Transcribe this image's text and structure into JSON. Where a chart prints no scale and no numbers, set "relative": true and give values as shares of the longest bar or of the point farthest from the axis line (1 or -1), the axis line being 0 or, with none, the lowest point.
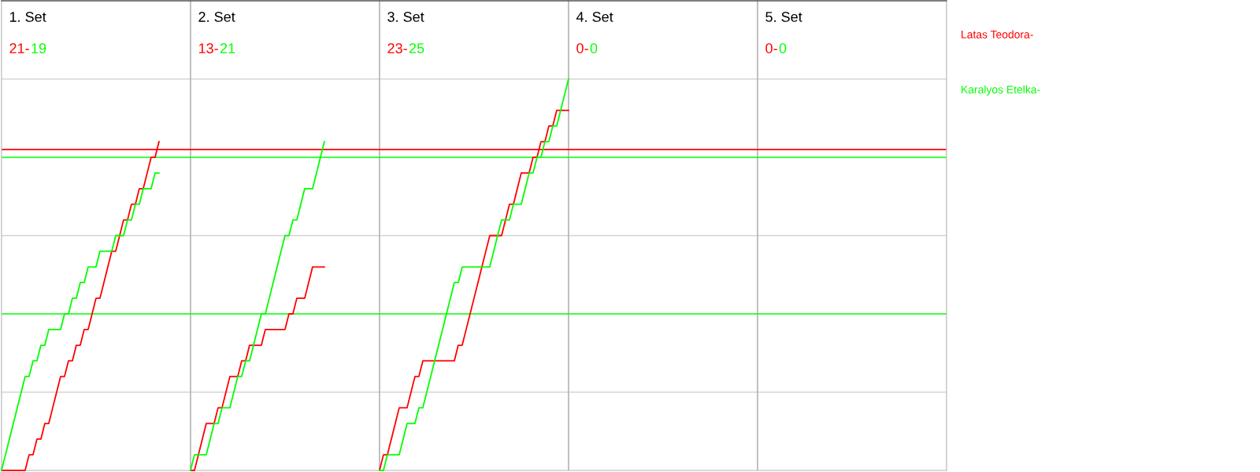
{
  "chart_data": {
    "type": "line",
    "relative": true,
    "legend": "right",
    "line_style": "solid",
    "annotations": [
      "1. Set",
      "21-",
      "19",
      "2. Set",
      "13-",
      "21",
      "3. Set",
      "23-",
      "25",
      "4. Set",
      "0-",
      "0",
      "5. Set",
      "0-",
      "0"
    ],
    "categories": [
      null,
      null,
      null,
      null,
      null,
      null,
      null,
      null,
      null,
      null,
      null,
      null,
      null,
      null,
      null,
      null,
      null,
      null,
      null,
      null,
      null,
      null,
      null,
      null,
      null,
      null,
      null,
      null,
      null,
      null,
      null,
      null,
      null,
      null,
      null,
      null,
      null,
      null,
      null,
      null,
      null,
      null,
      null,
      null,
      null,
      null,
      null,
      null,
      null,
      null,
      null,
      null,
      null,
      null,
      null,
      null,
      null,
      null,
      null,
      null,
      null,
      null,
      null,
      null,
      null,
      null,
      null,
      null,
      null,
      null,
      null,
      null,
      null,
      null,
      null,
      null,
      null,
      null,
      null,
      null,
      null,
      null,
      null,
      null,
      null,
      null,
      null,
      null,
      null,
      null,
      null,
      null,
      null,
      null,
      null,
      null,
      null,
      null,
      null,
      null,
      null,
      null,
      null,
      null,
      null,
      null,
      null,
      null,
      null,
      null,
      null,
      null,
      null,
      null,
      null,
      null,
      null,
      null,
      null,
      null,
      null,
      null,
      null,
      null,
      null,
      null,
      null,
      null,
      null,
      null,
      null,
      null,
      null,
      null,
      null,
      null,
      null,
      null,
      null,
      null,
      null,
      null,
      null,
      null,
      null,
      null,
      null,
      null,
      null,
      null,
      null,
      null,
      null,
      null,
      null,
      null,
      null,
      null,
      null,
      null,
      null,
      null,
      null,
      null,
      null,
      null,
      null,
      null,
      null,
      null,
      null,
      null,
      null,
      null,
      null,
      null,
      null,
      null,
      null,
      null,
      null,
      null,
      null,
      null,
      null,
      null,
      null,
      null,
      null,
      null,
      null,
      null,
      null,
      null,
      null,
      null,
      null,
      null,
      null,
      null,
      null,
      null,
      null,
      null,
      null,
      null,
      null,
      null,
      null,
      null,
      null,
      null,
      null,
      null,
      null,
      null,
      null,
      null,
      null,
      null,
      null,
      null,
      null,
      null,
      null,
      null,
      null,
      null,
      null,
      null,
      null,
      null,
      null,
      null,
      null,
      null,
      null,
      null,
      null,
      null,
      null
    ],
    "ref_lines": [
      {
        "axis": "y",
        "value": 0.2,
        "color": "#d3d3d3"
      },
      {
        "axis": "y",
        "value": 0.6,
        "color": "#d3d3d3"
      },
      {
        "axis": "y",
        "value": 1,
        "color": "#d3d3d3"
      },
      {
        "axis": "y",
        "value": 0.82,
        "color": "#ff0000"
      },
      {
        "axis": "y",
        "value": 0.8,
        "color": "#00ff00"
      },
      {
        "axis": "y",
        "value": 0.4,
        "color": "#00ff00"
      }
    ],
    "series": [
      {
        "name": "Latas Teodora-",
        "color": "#ff0000",
        "values": [
          0,
          0,
          0,
          0,
          0,
          0,
          0,
          0.04,
          0.04,
          0.08,
          0.08,
          0.12,
          0.12,
          0.16,
          0.2,
          0.24,
          0.24,
          0.28,
          0.28,
          0.32,
          0.32,
          0.36,
          0.36,
          0.4,
          0.44,
          0.44,
          0.48,
          0.52,
          0.56,
          0.56,
          0.6,
          0.64,
          0.64,
          0.68,
          0.68,
          0.72,
          0.72,
          0.76,
          0.8,
          0.8,
          0.84,
          null,
          null,
          null,
          null,
          null,
          null,
          null,
          null,
          null,
          null,
          null,
          null,
          null,
          null,
          null,
          null,
          null,
          null,
          null,
          null,
          null,
          null,
          null,
          null,
          null,
          null,
          null,
          null,
          null,
          null,
          null,
          null,
          null,
          null,
          null,
          null,
          null,
          null,
          null,
          null,
          null,
          null,
          null,
          null,
          null,
          null,
          null,
          null,
          null,
          null,
          null,
          null,
          null,
          null,
          null,
          null,
          null,
          null,
          null,
          null,
          null,
          null,
          null,
          null,
          null,
          null,
          null,
          null,
          null,
          null,
          null,
          null,
          null,
          null,
          null,
          null,
          null,
          null,
          null,
          null,
          null,
          null,
          null,
          null,
          null,
          null,
          null,
          null,
          null,
          null,
          null,
          null,
          null,
          null,
          null,
          null,
          null,
          null,
          null,
          null,
          null,
          null,
          null,
          null,
          null,
          null,
          null,
          null,
          null,
          null,
          null,
          null,
          null,
          null,
          null,
          null,
          null,
          null,
          null,
          null,
          null,
          null,
          null,
          null,
          null,
          null,
          null,
          null,
          null,
          null,
          null,
          null,
          null,
          null,
          null,
          null,
          null,
          null,
          null,
          null,
          null,
          null,
          null,
          null,
          null,
          null,
          null,
          null,
          null,
          null,
          null,
          null,
          null,
          null,
          null,
          null,
          null,
          null,
          null,
          null,
          null,
          null,
          null,
          null,
          null,
          null,
          null,
          null,
          null,
          null,
          null,
          null,
          null,
          null,
          null,
          null,
          null,
          null,
          null,
          null,
          null,
          null,
          null,
          null,
          null,
          null,
          null,
          null,
          null,
          null,
          null,
          null,
          null,
          null,
          null,
          null,
          null,
          null,
          null,
          null
        ]
      },
      {
        "name": "Karalyos Etelka-",
        "color": "#00ff00",
        "values": [
          0,
          0.04,
          0.08,
          0.12,
          0.16,
          0.2,
          0.24,
          0.24,
          0.28,
          0.28,
          0.32,
          0.32,
          0.36,
          0.36,
          0.36,
          0.36,
          0.4,
          0.4,
          0.44,
          0.44,
          0.48,
          0.48,
          0.52,
          0.52,
          0.52,
          0.56,
          0.56,
          0.56,
          0.56,
          0.6,
          0.6,
          0.6,
          0.64,
          0.64,
          0.68,
          0.68,
          0.72,
          0.72,
          0.72,
          0.76,
          0.76,
          null,
          null,
          null,
          null,
          null,
          null,
          null,
          null,
          null,
          null,
          null,
          null,
          null,
          null,
          null,
          null,
          null,
          null,
          null,
          null,
          null,
          null,
          null,
          null,
          null,
          null,
          null,
          null,
          null,
          null,
          null,
          null,
          null,
          null,
          null,
          null,
          null,
          null,
          null,
          null,
          null,
          null,
          null,
          null,
          null,
          null,
          null,
          null,
          null,
          null,
          null,
          null,
          null,
          null,
          null,
          null,
          null,
          null,
          null,
          null,
          null,
          null,
          null,
          null,
          null,
          null,
          null,
          null,
          null,
          null,
          null,
          null,
          null,
          null,
          null,
          null,
          null,
          null,
          null,
          null,
          null,
          null,
          null,
          null,
          null,
          null,
          null,
          null,
          null,
          null,
          null,
          null,
          null,
          null,
          null,
          null,
          null,
          null,
          null,
          null,
          null,
          null,
          null,
          null,
          null,
          null,
          null,
          null,
          null,
          null,
          null,
          null,
          null,
          null,
          null,
          null,
          null,
          null,
          null,
          null,
          null,
          null,
          null,
          null,
          null,
          null,
          null,
          null,
          null,
          null,
          null,
          null,
          null,
          null,
          null,
          null,
          null,
          null,
          null,
          null,
          null,
          null,
          null,
          null,
          null,
          null,
          null,
          null,
          null,
          null,
          null,
          null,
          null,
          null,
          null,
          null,
          null,
          null,
          null,
          null,
          null,
          null,
          null,
          null,
          null,
          null,
          null,
          null,
          null,
          null,
          null,
          null,
          null,
          null,
          null,
          null,
          null,
          null,
          null,
          null,
          null,
          null,
          null,
          null,
          null,
          null,
          null,
          null,
          null,
          null,
          null,
          null,
          null,
          null,
          null,
          null,
          null,
          null,
          null,
          null
        ]
      },
      {
        "color": "#ff0000",
        "values": [
          null,
          null,
          null,
          null,
          null,
          null,
          null,
          null,
          null,
          null,
          null,
          null,
          null,
          null,
          null,
          null,
          null,
          null,
          null,
          null,
          null,
          null,
          null,
          null,
          null,
          null,
          null,
          null,
          null,
          null,
          null,
          null,
          null,
          null,
          null,
          null,
          null,
          null,
          null,
          null,
          null,
          null,
          null,
          null,
          null,
          null,
          null,
          null,
          0,
          0,
          0.04,
          0.08,
          0.12,
          0.12,
          0.12,
          0.16,
          0.16,
          0.2,
          0.24,
          0.24,
          0.24,
          0.28,
          0.28,
          0.32,
          0.32,
          0.32,
          0.32,
          0.36,
          0.36,
          0.36,
          0.36,
          0.36,
          0.36,
          0.4,
          0.4,
          0.44,
          0.44,
          0.44,
          0.48,
          0.52,
          0.52,
          0.52,
          0.52,
          null,
          null,
          null,
          null,
          null,
          null,
          null,
          null,
          null,
          null,
          null,
          null,
          null,
          null,
          null,
          null,
          null,
          null,
          null,
          null,
          null,
          null,
          null,
          null,
          null,
          null,
          null,
          null,
          null,
          null,
          null,
          null,
          null,
          null,
          null,
          null,
          null,
          null,
          null,
          null,
          null,
          null,
          null,
          null,
          null,
          null,
          null,
          null,
          null,
          null,
          null,
          null,
          null,
          null,
          null,
          null,
          null,
          null,
          null,
          null,
          null,
          null,
          null,
          null,
          null,
          null,
          null,
          null,
          null,
          null,
          null,
          null,
          null,
          null,
          null,
          null,
          null,
          null,
          null,
          null,
          null,
          null,
          null,
          null,
          null,
          null,
          null,
          null,
          null,
          null,
          null,
          null,
          null,
          null,
          null,
          null,
          null,
          null,
          null,
          null,
          null,
          null,
          null,
          null,
          null,
          null,
          null,
          null,
          null,
          null,
          null,
          null,
          null,
          null,
          null,
          null,
          null,
          null,
          null,
          null,
          null,
          null,
          null,
          null,
          null,
          null,
          null,
          null,
          null,
          null,
          null,
          null,
          null,
          null,
          null,
          null,
          null,
          null,
          null,
          null,
          null,
          null,
          null,
          null,
          null,
          null,
          null,
          null,
          null,
          null,
          null,
          null,
          null,
          null,
          null,
          null,
          null,
          null
        ]
      },
      {
        "color": "#00ff00",
        "values": [
          null,
          null,
          null,
          null,
          null,
          null,
          null,
          null,
          null,
          null,
          null,
          null,
          null,
          null,
          null,
          null,
          null,
          null,
          null,
          null,
          null,
          null,
          null,
          null,
          null,
          null,
          null,
          null,
          null,
          null,
          null,
          null,
          null,
          null,
          null,
          null,
          null,
          null,
          null,
          null,
          null,
          null,
          null,
          null,
          null,
          null,
          null,
          null,
          0,
          0.04,
          0.04,
          0.04,
          0.04,
          0.08,
          0.12,
          0.12,
          0.16,
          0.16,
          0.16,
          0.2,
          0.24,
          0.24,
          0.28,
          0.28,
          0.32,
          0.36,
          0.4,
          0.4,
          0.44,
          0.48,
          0.52,
          0.56,
          0.6,
          0.6,
          0.64,
          0.64,
          0.68,
          0.72,
          0.72,
          0.72,
          0.76,
          0.8,
          0.84,
          null,
          null,
          null,
          null,
          null,
          null,
          null,
          null,
          null,
          null,
          null,
          null,
          null,
          null,
          null,
          null,
          null,
          null,
          null,
          null,
          null,
          null,
          null,
          null,
          null,
          null,
          null,
          null,
          null,
          null,
          null,
          null,
          null,
          null,
          null,
          null,
          null,
          null,
          null,
          null,
          null,
          null,
          null,
          null,
          null,
          null,
          null,
          null,
          null,
          null,
          null,
          null,
          null,
          null,
          null,
          null,
          null,
          null,
          null,
          null,
          null,
          null,
          null,
          null,
          null,
          null,
          null,
          null,
          null,
          null,
          null,
          null,
          null,
          null,
          null,
          null,
          null,
          null,
          null,
          null,
          null,
          null,
          null,
          null,
          null,
          null,
          null,
          null,
          null,
          null,
          null,
          null,
          null,
          null,
          null,
          null,
          null,
          null,
          null,
          null,
          null,
          null,
          null,
          null,
          null,
          null,
          null,
          null,
          null,
          null,
          null,
          null,
          null,
          null,
          null,
          null,
          null,
          null,
          null,
          null,
          null,
          null,
          null,
          null,
          null,
          null,
          null,
          null,
          null,
          null,
          null,
          null,
          null,
          null,
          null,
          null,
          null,
          null,
          null,
          null,
          null,
          null,
          null,
          null,
          null,
          null,
          null,
          null,
          null,
          null,
          null,
          null,
          null,
          null,
          null,
          null,
          null,
          null
        ]
      },
      {
        "color": "#ff0000",
        "values": [
          null,
          null,
          null,
          null,
          null,
          null,
          null,
          null,
          null,
          null,
          null,
          null,
          null,
          null,
          null,
          null,
          null,
          null,
          null,
          null,
          null,
          null,
          null,
          null,
          null,
          null,
          null,
          null,
          null,
          null,
          null,
          null,
          null,
          null,
          null,
          null,
          null,
          null,
          null,
          null,
          null,
          null,
          null,
          null,
          null,
          null,
          null,
          null,
          null,
          null,
          null,
          null,
          null,
          null,
          null,
          null,
          null,
          null,
          null,
          null,
          null,
          null,
          null,
          null,
          null,
          null,
          null,
          null,
          null,
          null,
          null,
          null,
          null,
          null,
          null,
          null,
          null,
          null,
          null,
          null,
          null,
          null,
          null,
          null,
          null,
          null,
          null,
          null,
          null,
          null,
          null,
          null,
          null,
          null,
          null,
          null,
          0,
          0.04,
          0.04,
          0.08,
          0.12,
          0.16,
          0.16,
          0.16,
          0.2,
          0.24,
          0.24,
          0.28,
          0.28,
          0.28,
          0.28,
          0.28,
          0.28,
          0.28,
          0.28,
          0.28,
          0.32,
          0.32,
          0.36,
          0.4,
          0.44,
          0.48,
          0.52,
          0.56,
          0.6,
          0.6,
          0.6,
          0.6,
          0.64,
          0.68,
          0.68,
          0.72,
          0.76,
          0.76,
          0.76,
          0.8,
          0.8,
          0.84,
          0.84,
          0.88,
          0.88,
          0.92,
          0.92,
          0.92,
          0.92,
          null,
          null,
          null,
          null,
          null,
          null,
          null,
          null,
          null,
          null,
          null,
          null,
          null,
          null,
          null,
          null,
          null,
          null,
          null,
          null,
          null,
          null,
          null,
          null,
          null,
          null,
          null,
          null,
          null,
          null,
          null,
          null,
          null,
          null,
          null,
          null,
          null,
          null,
          null,
          null,
          null,
          null,
          null,
          null,
          null,
          null,
          null,
          null,
          null,
          null,
          null,
          null,
          null,
          null,
          null,
          null,
          null,
          null,
          null,
          null,
          null,
          null,
          null,
          null,
          null,
          null,
          null,
          null,
          null,
          null,
          null,
          null,
          null,
          null,
          null,
          null,
          null,
          null,
          null,
          null,
          null,
          null,
          null,
          null,
          null,
          null,
          null,
          null,
          null,
          null,
          null,
          null,
          null,
          null,
          null,
          null
        ]
      },
      {
        "color": "#00ff00",
        "values": [
          null,
          null,
          null,
          null,
          null,
          null,
          null,
          null,
          null,
          null,
          null,
          null,
          null,
          null,
          null,
          null,
          null,
          null,
          null,
          null,
          null,
          null,
          null,
          null,
          null,
          null,
          null,
          null,
          null,
          null,
          null,
          null,
          null,
          null,
          null,
          null,
          null,
          null,
          null,
          null,
          null,
          null,
          null,
          null,
          null,
          null,
          null,
          null,
          null,
          null,
          null,
          null,
          null,
          null,
          null,
          null,
          null,
          null,
          null,
          null,
          null,
          null,
          null,
          null,
          null,
          null,
          null,
          null,
          null,
          null,
          null,
          null,
          null,
          null,
          null,
          null,
          null,
          null,
          null,
          null,
          null,
          null,
          null,
          null,
          null,
          null,
          null,
          null,
          null,
          null,
          null,
          null,
          null,
          null,
          null,
          null,
          0,
          0,
          0.04,
          0.04,
          0.04,
          0.04,
          0.08,
          0.12,
          0.12,
          0.12,
          0.16,
          0.16,
          0.2,
          0.24,
          0.28,
          0.32,
          0.36,
          0.4,
          0.44,
          0.48,
          0.48,
          0.52,
          0.52,
          0.52,
          0.52,
          0.52,
          0.52,
          0.52,
          0.52,
          0.56,
          0.6,
          0.64,
          0.64,
          0.64,
          0.68,
          0.68,
          0.68,
          0.72,
          0.76,
          0.76,
          0.8,
          0.8,
          0.84,
          0.84,
          0.88,
          0.88,
          0.92,
          0.96,
          1,
          null,
          null,
          null,
          null,
          null,
          null,
          null,
          null,
          null,
          null,
          null,
          null,
          null,
          null,
          null,
          null,
          null,
          null,
          null,
          null,
          null,
          null,
          null,
          null,
          null,
          null,
          null,
          null,
          null,
          null,
          null,
          null,
          null,
          null,
          null,
          null,
          null,
          null,
          null,
          null,
          null,
          null,
          null,
          null,
          null,
          null,
          null,
          null,
          null,
          null,
          null,
          null,
          null,
          null,
          null,
          null,
          null,
          null,
          null,
          null,
          null,
          null,
          null,
          null,
          null,
          null,
          null,
          null,
          null,
          null,
          null,
          null,
          null,
          null,
          null,
          null,
          null,
          null,
          null,
          null,
          null,
          null,
          null,
          null,
          null,
          null,
          null,
          null,
          null,
          null,
          null,
          null,
          null,
          null,
          null,
          null
        ]
      }
    ]
  }
}
